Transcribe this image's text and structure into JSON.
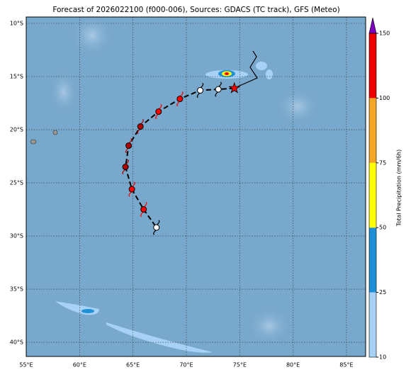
{
  "title": "Forecast of 2026022100 (f000-006), Sources: GDACS (TC track), GFS (Meteo)",
  "map": {
    "lonlim": [
      55,
      86.8
    ],
    "latlim": [
      -41.33,
      -9.4
    ],
    "xticks": [
      {
        "value": 55,
        "label": "55°E"
      },
      {
        "value": 60,
        "label": "60°E"
      },
      {
        "value": 65,
        "label": "65°E"
      },
      {
        "value": 70,
        "label": "70°E"
      },
      {
        "value": 75,
        "label": "75°E"
      },
      {
        "value": 80,
        "label": "80°E"
      },
      {
        "value": 85,
        "label": "85°E"
      }
    ],
    "yticks": [
      {
        "value": -10,
        "label": "10°S"
      },
      {
        "value": -15,
        "label": "15°S"
      },
      {
        "value": -20,
        "label": "20°S"
      },
      {
        "value": -25,
        "label": "25°S"
      },
      {
        "value": -30,
        "label": "30°S"
      },
      {
        "value": -35,
        "label": "35°S"
      },
      {
        "value": -40,
        "label": "40°S"
      }
    ],
    "grid": true
  },
  "track": [
    {
      "lon": 74.5,
      "lat": -16.1,
      "color": "#ff0000",
      "marker": "star"
    },
    {
      "lon": 73.0,
      "lat": -16.2,
      "color": "#ffffff",
      "marker": "storm"
    },
    {
      "lon": 71.3,
      "lat": -16.3,
      "color": "#ffffff",
      "marker": "storm"
    },
    {
      "lon": 69.4,
      "lat": -17.1,
      "color": "#ff0000",
      "marker": "storm"
    },
    {
      "lon": 67.4,
      "lat": -18.3,
      "color": "#ff0000",
      "marker": "storm"
    },
    {
      "lon": 65.7,
      "lat": -19.7,
      "color": "#b00000",
      "marker": "storm"
    },
    {
      "lon": 64.6,
      "lat": -21.5,
      "color": "#b00000",
      "marker": "storm"
    },
    {
      "lon": 64.3,
      "lat": -23.5,
      "color": "#b00000",
      "marker": "storm"
    },
    {
      "lon": 64.9,
      "lat": -25.6,
      "color": "#ff0000",
      "marker": "storm"
    },
    {
      "lon": 66.0,
      "lat": -27.5,
      "color": "#ff0000",
      "marker": "storm"
    },
    {
      "lon": 67.2,
      "lat": -29.2,
      "color": "#ffffff",
      "marker": "storm"
    }
  ],
  "colorbar": {
    "label": "Total Precipitation (mm/6h)",
    "ticks": [
      10,
      25,
      50,
      75,
      100,
      150
    ],
    "colors": [
      "#a8d2f5",
      "#1e90d8",
      "#ffff00",
      "#f5a623",
      "#ee0000"
    ],
    "extend_color": "#8000c0"
  }
}
